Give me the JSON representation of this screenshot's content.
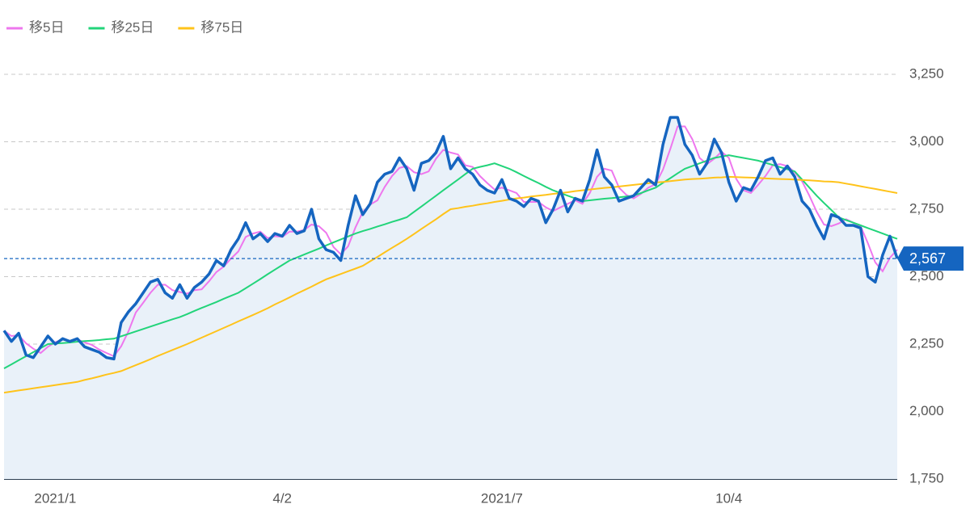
{
  "chart_data": {
    "type": "line",
    "categories": [
      null,
      null,
      null,
      null,
      null,
      null,
      null,
      "2021/1",
      null,
      null,
      null,
      null,
      null,
      null,
      null,
      null,
      null,
      null,
      null,
      null,
      null,
      null,
      null,
      null,
      null,
      null,
      null,
      null,
      null,
      null,
      null,
      null,
      null,
      null,
      null,
      null,
      null,
      null,
      "4/2",
      null,
      null,
      null,
      null,
      null,
      null,
      null,
      null,
      null,
      null,
      null,
      null,
      null,
      null,
      null,
      null,
      null,
      null,
      null,
      null,
      null,
      null,
      null,
      null,
      null,
      null,
      null,
      null,
      null,
      "2021/7",
      null,
      null,
      null,
      null,
      null,
      null,
      null,
      null,
      null,
      null,
      null,
      null,
      null,
      null,
      null,
      null,
      null,
      null,
      null,
      null,
      null,
      null,
      null,
      null,
      null,
      null,
      null,
      null,
      null,
      null,
      "10/4",
      null,
      null,
      null,
      null,
      null,
      null,
      null,
      null,
      null,
      null,
      null,
      null,
      null,
      null,
      null,
      null,
      null,
      null,
      null,
      null,
      null,
      null,
      null
    ],
    "values": [
      2300,
      2260,
      2290,
      2210,
      2200,
      2240,
      2280,
      2250,
      2270,
      2260,
      2270,
      2240,
      2230,
      2220,
      2200,
      2195,
      2330,
      2370,
      2400,
      2440,
      2480,
      2490,
      2440,
      2420,
      2470,
      2420,
      2460,
      2480,
      2510,
      2560,
      2540,
      2600,
      2640,
      2700,
      2640,
      2660,
      2630,
      2660,
      2650,
      2690,
      2660,
      2670,
      2750,
      2640,
      2600,
      2590,
      2560,
      2690,
      2800,
      2730,
      2770,
      2850,
      2880,
      2890,
      2940,
      2900,
      2820,
      2920,
      2930,
      2960,
      3020,
      2900,
      2940,
      2900,
      2880,
      2840,
      2820,
      2810,
      2860,
      2790,
      2780,
      2760,
      2790,
      2780,
      2700,
      2750,
      2820,
      2740,
      2790,
      2780,
      2860,
      2970,
      2870,
      2840,
      2780,
      2790,
      2800,
      2830,
      2860,
      2840,
      2990,
      3090,
      3090,
      2990,
      2950,
      2880,
      2920,
      3010,
      2960,
      2850,
      2780,
      2830,
      2820,
      2870,
      2930,
      2940,
      2880,
      2910,
      2870,
      2780,
      2750,
      2690,
      2640,
      2730,
      2720,
      2690,
      2690,
      2680,
      2500,
      2480,
      2580,
      2650,
      2567
    ],
    "color": "#1565c0",
    "series": [
      {
        "name": "移5日",
        "color": "#ee77ee",
        "values": [
          2300,
          2280,
          2283,
          2253,
          2233,
          2217,
          2240,
          2257,
          2267,
          2260,
          2267,
          2257,
          2247,
          2230,
          2217,
          2205,
          2242,
          2298,
          2367,
          2403,
          2440,
          2470,
          2470,
          2450,
          2443,
          2437,
          2450,
          2453,
          2483,
          2517,
          2537,
          2567,
          2593,
          2647,
          2660,
          2667,
          2643,
          2650,
          2647,
          2667,
          2667,
          2673,
          2693,
          2687,
          2663,
          2610,
          2583,
          2613,
          2683,
          2740,
          2767,
          2783,
          2833,
          2873,
          2903,
          2910,
          2887,
          2880,
          2890,
          2937,
          2970,
          2960,
          2953,
          2913,
          2907,
          2873,
          2847,
          2823,
          2830,
          2820,
          2810,
          2777,
          2777,
          2777,
          2757,
          2743,
          2757,
          2770,
          2783,
          2770,
          2810,
          2870,
          2900,
          2893,
          2830,
          2803,
          2790,
          2807,
          2830,
          2843,
          2897,
          2973,
          3057,
          3057,
          3010,
          2940,
          2917,
          2937,
          2963,
          2940,
          2863,
          2820,
          2810,
          2840,
          2873,
          2913,
          2917,
          2910,
          2887,
          2853,
          2800,
          2740,
          2693,
          2687,
          2697,
          2713,
          2700,
          2687,
          2623,
          2553,
          2520,
          2570,
          2600
        ]
      },
      {
        "name": "移25日",
        "color": "#22d47a",
        "values": [
          2160,
          2175,
          2190,
          2205,
          2220,
          2235,
          2250,
          2252,
          2254,
          2256,
          2259,
          2261,
          2263,
          2265,
          2268,
          2270,
          2279,
          2288,
          2297,
          2306,
          2315,
          2324,
          2333,
          2342,
          2350,
          2361,
          2373,
          2384,
          2395,
          2406,
          2418,
          2429,
          2440,
          2457,
          2474,
          2491,
          2509,
          2526,
          2543,
          2560,
          2571,
          2582,
          2593,
          2604,
          2616,
          2627,
          2638,
          2649,
          2660,
          2669,
          2677,
          2686,
          2694,
          2703,
          2711,
          2720,
          2740,
          2760,
          2780,
          2800,
          2820,
          2840,
          2860,
          2880,
          2900,
          2907,
          2913,
          2920,
          2910,
          2900,
          2887,
          2873,
          2860,
          2847,
          2833,
          2820,
          2810,
          2800,
          2790,
          2780,
          2783,
          2786,
          2789,
          2791,
          2794,
          2797,
          2800,
          2810,
          2820,
          2830,
          2848,
          2865,
          2883,
          2900,
          2910,
          2920,
          2930,
          2940,
          2945,
          2950,
          2945,
          2940,
          2935,
          2930,
          2922,
          2914,
          2906,
          2898,
          2890,
          2860,
          2830,
          2800,
          2773,
          2747,
          2720,
          2710,
          2700,
          2690,
          2680,
          2670,
          2660,
          2650,
          2640
        ]
      },
      {
        "name": "移75日",
        "color": "#ffc31a",
        "values": [
          2070,
          2074,
          2078,
          2082,
          2086,
          2090,
          2094,
          2098,
          2102,
          2106,
          2110,
          2117,
          2123,
          2130,
          2137,
          2143,
          2150,
          2161,
          2172,
          2183,
          2194,
          2206,
          2217,
          2228,
          2239,
          2250,
          2262,
          2274,
          2286,
          2298,
          2310,
          2322,
          2334,
          2346,
          2358,
          2370,
          2383,
          2397,
          2410,
          2423,
          2437,
          2450,
          2463,
          2477,
          2490,
          2500,
          2510,
          2520,
          2530,
          2540,
          2557,
          2573,
          2590,
          2607,
          2623,
          2640,
          2658,
          2677,
          2695,
          2713,
          2732,
          2750,
          2754,
          2759,
          2763,
          2768,
          2772,
          2777,
          2781,
          2786,
          2790,
          2793,
          2797,
          2800,
          2803,
          2807,
          2810,
          2813,
          2817,
          2820,
          2823,
          2826,
          2829,
          2831,
          2834,
          2837,
          2840,
          2843,
          2846,
          2849,
          2851,
          2854,
          2857,
          2860,
          2862,
          2863,
          2865,
          2867,
          2868,
          2870,
          2869,
          2868,
          2867,
          2866,
          2864,
          2863,
          2862,
          2861,
          2860,
          2858,
          2857,
          2855,
          2853,
          2852,
          2850,
          2845,
          2840,
          2835,
          2830,
          2825,
          2820,
          2815,
          2810
        ]
      }
    ],
    "ylim": [
      1750,
      3250
    ],
    "yticks": [
      {
        "value": 1750,
        "label": "1,750"
      },
      {
        "value": 2000,
        "label": "2,000"
      },
      {
        "value": 2250,
        "label": "2,250"
      },
      {
        "value": 2500,
        "label": "2,500"
      },
      {
        "value": 2750,
        "label": "2,750"
      },
      {
        "value": 3000,
        "label": "3,000"
      },
      {
        "value": 3250,
        "label": "3,250"
      }
    ],
    "current": {
      "value": 2567,
      "label": "2,567"
    },
    "grid": true
  }
}
